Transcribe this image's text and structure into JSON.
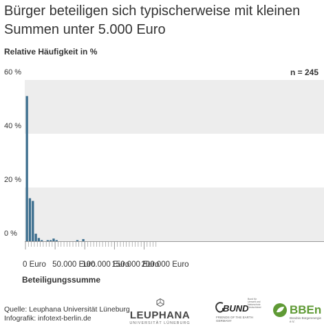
{
  "title": "Bürger beteiligen sich typischerweise mit kleinen Summen unter 5.000 Euro",
  "n_label": "n = 245",
  "footer": {
    "source": "Quelle: Leuphana Universität Lüneburg",
    "infografik": "Infografik: infotext-berlin.de"
  },
  "logos": {
    "leuphana": {
      "name": "LEUPHANA",
      "sub": "UNIVERSITÄT LÜNEBURG"
    },
    "bund": {
      "name": "BUND",
      "sub": "FRIENDS OF THE EARTH GERMANY",
      "fine": "Bund für Umwelt und Naturschutz Deutschland"
    },
    "bben": {
      "name": "BBEn",
      "sub": "Bündnis Bürgerenergie e.V."
    }
  },
  "colors": {
    "bar": "#3d6f8f",
    "band": "#ededed",
    "axis": "#999999",
    "text": "#333333"
  },
  "chart_data": {
    "type": "bar",
    "title": "",
    "ylabel": "Relative Häufigkeit in %",
    "xlabel": "Beteiligungssumme",
    "ylim": [
      0,
      60
    ],
    "xlim": [
      0,
      220000
    ],
    "bin_width": 5000,
    "y_ticks": [
      0,
      20,
      40,
      60
    ],
    "y_tick_labels": [
      "0 %",
      "20 %",
      "40 %",
      "60 %"
    ],
    "x_ticks": [
      0,
      50000,
      100000,
      150000,
      200000
    ],
    "x_tick_labels": [
      "0 Euro",
      "50.000 Euro",
      "100.000 Euro",
      "150.000 Euro",
      "200.000 Euro"
    ],
    "bins": [
      {
        "x": 0,
        "value": 54
      },
      {
        "x": 5000,
        "value": 16
      },
      {
        "x": 10000,
        "value": 15
      },
      {
        "x": 15000,
        "value": 2.8
      },
      {
        "x": 20000,
        "value": 1.2
      },
      {
        "x": 25000,
        "value": 0.4
      },
      {
        "x": 35000,
        "value": 0.4
      },
      {
        "x": 40000,
        "value": 0.4
      },
      {
        "x": 45000,
        "value": 1.0
      },
      {
        "x": 50000,
        "value": 0.4
      },
      {
        "x": 85000,
        "value": 0.4
      },
      {
        "x": 95000,
        "value": 0.8
      }
    ],
    "grid": "alternating horizontal bands",
    "legend": "none"
  }
}
